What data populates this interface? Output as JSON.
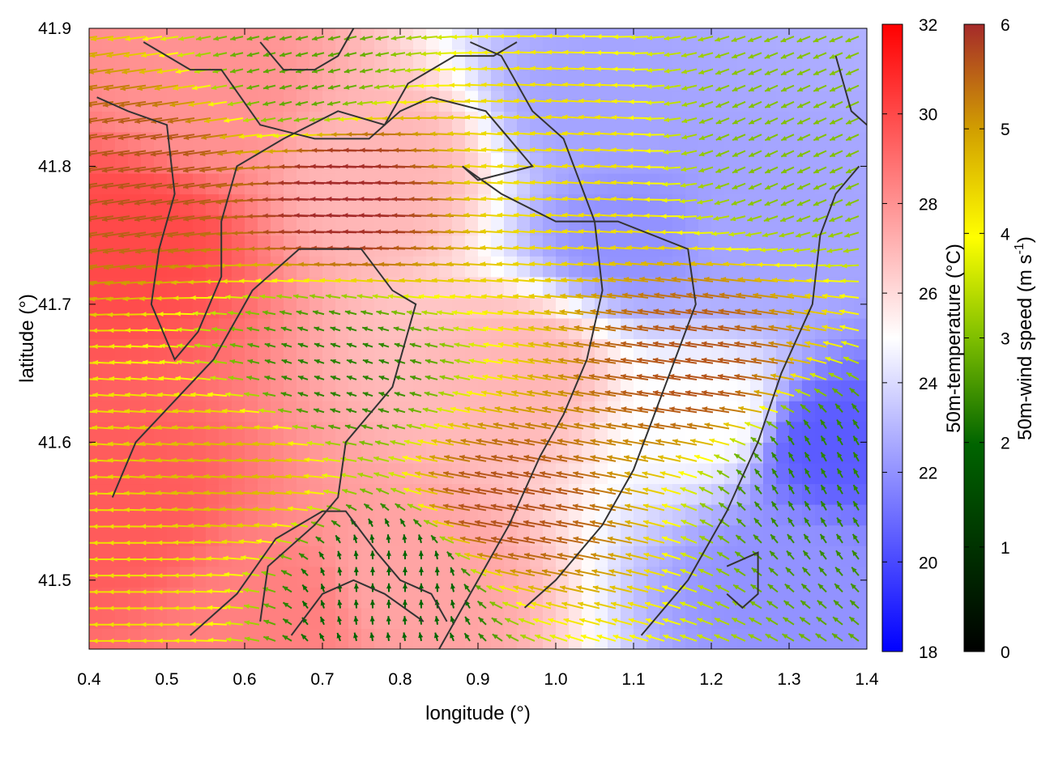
{
  "chart_data": {
    "type": "heatmap",
    "title": "",
    "xlabel": "longitude (°)",
    "ylabel": "latitude (°)",
    "xlim": [
      0.4,
      1.4
    ],
    "ylim": [
      41.45,
      41.9
    ],
    "x_ticks": [
      "0.4",
      "0.5",
      "0.6",
      "0.7",
      "0.8",
      "0.9",
      "1.0",
      "1.1",
      "1.2",
      "1.3",
      "1.4"
    ],
    "y_ticks": [
      "41.5",
      "41.6",
      "41.7",
      "41.8",
      "41.9"
    ],
    "x_tick_values": [
      0.4,
      0.5,
      0.6,
      0.7,
      0.8,
      0.9,
      1.0,
      1.1,
      1.2,
      1.3,
      1.4
    ],
    "y_tick_values": [
      41.5,
      41.6,
      41.7,
      41.8,
      41.9
    ],
    "grid": false,
    "colorbars": [
      {
        "label": "50m-temperature (°C)",
        "range": [
          18,
          32
        ],
        "ticks": [
          "18",
          "20",
          "22",
          "24",
          "26",
          "28",
          "30",
          "32"
        ],
        "tick_values": [
          18,
          20,
          22,
          24,
          26,
          28,
          30,
          32
        ],
        "colors": [
          "#0000ff",
          "#ffffff",
          "#ff0000"
        ]
      },
      {
        "label_main": "50m-wind speed (m s",
        "label_sup": "-1",
        "label_end": ")",
        "range": [
          0,
          6
        ],
        "ticks": [
          "0",
          "1",
          "2",
          "3",
          "4",
          "5",
          "6"
        ],
        "tick_values": [
          0,
          1,
          2,
          3,
          4,
          5,
          6
        ],
        "colors": [
          "#000000",
          "#006400",
          "#7fbf00",
          "#ffff00",
          "#d2a000",
          "#a52a2a"
        ]
      }
    ],
    "temperature_field_centers": [
      {
        "lon": 0.43,
        "lat": 41.55,
        "temp": 29.5
      },
      {
        "lon": 0.45,
        "lat": 41.75,
        "temp": 30.0
      },
      {
        "lon": 0.55,
        "lat": 41.85,
        "temp": 28.0
      },
      {
        "lon": 0.65,
        "lat": 41.48,
        "temp": 28.5
      },
      {
        "lon": 0.8,
        "lat": 41.5,
        "temp": 27.5
      },
      {
        "lon": 0.78,
        "lat": 41.8,
        "temp": 27.0
      },
      {
        "lon": 0.95,
        "lat": 41.65,
        "temp": 27.0
      },
      {
        "lon": 1.05,
        "lat": 41.85,
        "temp": 22.5
      },
      {
        "lon": 1.1,
        "lat": 41.75,
        "temp": 22.0
      },
      {
        "lon": 1.25,
        "lat": 41.75,
        "temp": 22.5
      },
      {
        "lon": 1.35,
        "lat": 41.6,
        "temp": 20.5
      },
      {
        "lon": 1.3,
        "lat": 41.5,
        "temp": 22.0
      },
      {
        "lon": 1.2,
        "lat": 41.62,
        "temp": 25.0
      }
    ],
    "wind_field_centers": [
      {
        "lon": 0.5,
        "lat": 41.8,
        "u": -5.5,
        "v": -0.8
      },
      {
        "lon": 0.75,
        "lat": 41.78,
        "u": -6.0,
        "v": 0.2
      },
      {
        "lon": 0.95,
        "lat": 41.55,
        "u": -5.5,
        "v": 1.0
      },
      {
        "lon": 1.2,
        "lat": 41.65,
        "u": -5.5,
        "v": 0.8
      },
      {
        "lon": 0.6,
        "lat": 41.58,
        "u": -4.5,
        "v": 0.3
      },
      {
        "lon": 0.8,
        "lat": 41.5,
        "u": 0.0,
        "v": 1.2
      },
      {
        "lon": 0.72,
        "lat": 41.65,
        "u": -1.5,
        "v": 0.5
      },
      {
        "lon": 0.68,
        "lat": 41.87,
        "u": -2.0,
        "v": -0.5
      },
      {
        "lon": 1.35,
        "lat": 41.58,
        "u": -0.8,
        "v": 1.4
      },
      {
        "lon": 1.32,
        "lat": 41.82,
        "u": -2.2,
        "v": -1.0
      },
      {
        "lon": 1.0,
        "lat": 41.8,
        "u": -4.0,
        "v": 0.3
      },
      {
        "lon": 0.45,
        "lat": 41.5,
        "u": -4.0,
        "v": 0.0
      }
    ],
    "contours": [
      [
        [
          0.41,
          41.85
        ],
        [
          0.45,
          41.84
        ],
        [
          0.5,
          41.83
        ],
        [
          0.51,
          41.78
        ],
        [
          0.49,
          41.74
        ],
        [
          0.48,
          41.7
        ],
        [
          0.51,
          41.66
        ],
        [
          0.54,
          41.68
        ],
        [
          0.57,
          41.72
        ],
        [
          0.57,
          41.76
        ],
        [
          0.59,
          41.8
        ],
        [
          0.65,
          41.82
        ],
        [
          0.72,
          41.84
        ],
        [
          0.78,
          41.83
        ],
        [
          0.81,
          41.86
        ],
        [
          0.87,
          41.88
        ],
        [
          0.92,
          41.88
        ],
        [
          0.95,
          41.89
        ]
      ],
      [
        [
          0.47,
          41.89
        ],
        [
          0.53,
          41.87
        ],
        [
          0.57,
          41.87
        ],
        [
          0.62,
          41.83
        ],
        [
          0.69,
          41.82
        ],
        [
          0.76,
          41.82
        ],
        [
          0.8,
          41.84
        ],
        [
          0.84,
          41.85
        ],
        [
          0.91,
          41.84
        ],
        [
          0.97,
          41.8
        ],
        [
          0.9,
          41.79
        ],
        [
          0.88,
          41.8
        ],
        [
          0.93,
          41.78
        ],
        [
          1.0,
          41.76
        ],
        [
          1.08,
          41.76
        ],
        [
          1.17,
          41.74
        ],
        [
          1.18,
          41.7
        ],
        [
          1.14,
          41.64
        ],
        [
          1.1,
          41.58
        ],
        [
          1.06,
          41.54
        ],
        [
          1.0,
          41.5
        ],
        [
          0.96,
          41.48
        ]
      ],
      [
        [
          0.43,
          41.56
        ],
        [
          0.46,
          41.6
        ],
        [
          0.51,
          41.63
        ],
        [
          0.56,
          41.66
        ],
        [
          0.61,
          41.71
        ],
        [
          0.67,
          41.74
        ],
        [
          0.75,
          41.74
        ],
        [
          0.79,
          41.71
        ],
        [
          0.82,
          41.7
        ],
        [
          0.79,
          41.64
        ],
        [
          0.73,
          41.6
        ],
        [
          0.72,
          41.56
        ],
        [
          0.69,
          41.54
        ],
        [
          0.63,
          41.51
        ],
        [
          0.62,
          41.47
        ]
      ],
      [
        [
          0.53,
          41.46
        ],
        [
          0.59,
          41.49
        ],
        [
          0.64,
          41.53
        ],
        [
          0.7,
          41.55
        ],
        [
          0.73,
          41.55
        ],
        [
          0.77,
          41.52
        ],
        [
          0.8,
          41.5
        ],
        [
          0.84,
          41.49
        ],
        [
          0.86,
          41.47
        ]
      ],
      [
        [
          0.66,
          41.46
        ],
        [
          0.7,
          41.49
        ],
        [
          0.74,
          41.5
        ],
        [
          0.78,
          41.49
        ],
        [
          0.83,
          41.47
        ]
      ],
      [
        [
          0.85,
          41.45
        ],
        [
          0.89,
          41.49
        ],
        [
          0.94,
          41.54
        ],
        [
          0.98,
          41.59
        ],
        [
          1.01,
          41.62
        ],
        [
          1.04,
          41.66
        ],
        [
          1.06,
          41.71
        ],
        [
          1.05,
          41.76
        ],
        [
          1.01,
          41.82
        ],
        [
          0.97,
          41.84
        ],
        [
          0.93,
          41.88
        ],
        [
          0.89,
          41.89
        ]
      ],
      [
        [
          1.11,
          41.46
        ],
        [
          1.17,
          41.5
        ],
        [
          1.22,
          41.55
        ],
        [
          1.26,
          41.6
        ],
        [
          1.29,
          41.65
        ],
        [
          1.33,
          41.7
        ],
        [
          1.34,
          41.75
        ],
        [
          1.36,
          41.78
        ],
        [
          1.39,
          41.8
        ]
      ],
      [
        [
          1.22,
          41.51
        ],
        [
          1.26,
          41.52
        ],
        [
          1.26,
          41.49
        ],
        [
          1.24,
          41.48
        ],
        [
          1.22,
          41.49
        ]
      ],
      [
        [
          0.62,
          41.89
        ],
        [
          0.65,
          41.87
        ],
        [
          0.69,
          41.87
        ],
        [
          0.72,
          41.88
        ],
        [
          0.74,
          41.9
        ]
      ],
      [
        [
          1.36,
          41.88
        ],
        [
          1.38,
          41.84
        ],
        [
          1.4,
          41.83
        ]
      ]
    ]
  }
}
